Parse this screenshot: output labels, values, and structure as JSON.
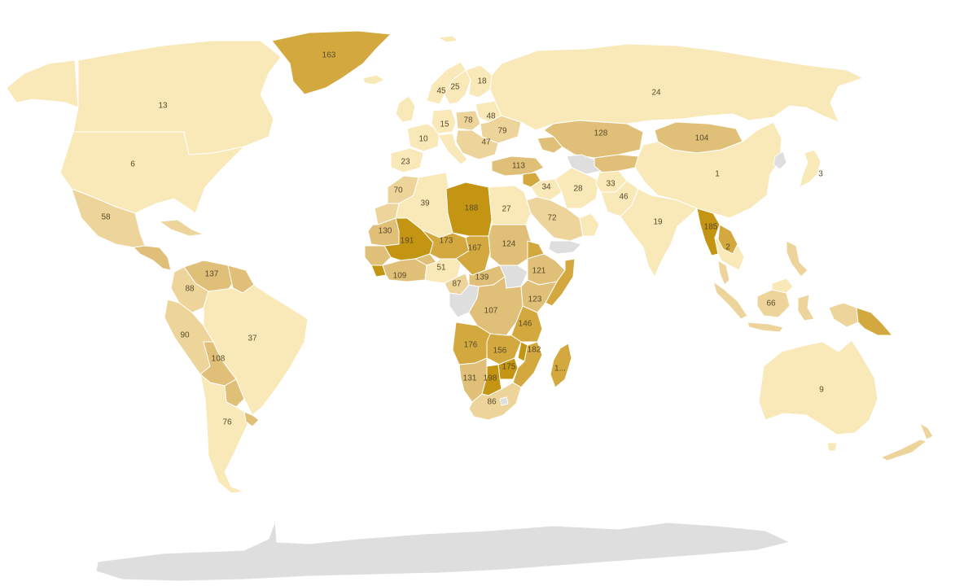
{
  "palette": {
    "tier1": "#f9e8b8",
    "tier2": "#ecd49a",
    "tier3": "#e0c078",
    "tier4": "#d3a93f",
    "tier5": "#c49513",
    "nodata": "#dedede",
    "background": "#ffffff"
  },
  "regions": [
    {
      "id": "greenland",
      "label": "163",
      "tier": "tier4"
    },
    {
      "id": "canada",
      "label": "13",
      "tier": "tier1"
    },
    {
      "id": "usa",
      "label": "6",
      "tier": "tier1"
    },
    {
      "id": "alaska",
      "label": "",
      "tier": "tier1"
    },
    {
      "id": "mexico",
      "label": "58",
      "tier": "tier2"
    },
    {
      "id": "central-america",
      "label": "",
      "tier": "tier3"
    },
    {
      "id": "caribbean",
      "label": "",
      "tier": "tier2"
    },
    {
      "id": "venezuela",
      "label": "137",
      "tier": "tier3"
    },
    {
      "id": "guianas",
      "label": "",
      "tier": "tier3"
    },
    {
      "id": "colombia",
      "label": "88",
      "tier": "tier2"
    },
    {
      "id": "ecuador-peru",
      "label": "90",
      "tier": "tier2"
    },
    {
      "id": "brazil",
      "label": "37",
      "tier": "tier1"
    },
    {
      "id": "bolivia",
      "label": "108",
      "tier": "tier3"
    },
    {
      "id": "paraguay",
      "label": "",
      "tier": "tier3"
    },
    {
      "id": "argentina-chile",
      "label": "76",
      "tier": "tier1"
    },
    {
      "id": "uruguay",
      "label": "",
      "tier": "tier3"
    },
    {
      "id": "iceland",
      "label": "",
      "tier": "tier1"
    },
    {
      "id": "uk-ireland",
      "label": "",
      "tier": "tier1"
    },
    {
      "id": "norway",
      "label": "45",
      "tier": "tier1"
    },
    {
      "id": "sweden",
      "label": "25",
      "tier": "tier1"
    },
    {
      "id": "finland",
      "label": "18",
      "tier": "tier1"
    },
    {
      "id": "svalbard",
      "label": "",
      "tier": "tier1"
    },
    {
      "id": "france",
      "label": "10",
      "tier": "tier1"
    },
    {
      "id": "germany",
      "label": "15",
      "tier": "tier1"
    },
    {
      "id": "poland",
      "label": "78",
      "tier": "tier2"
    },
    {
      "id": "belarus",
      "label": "48",
      "tier": "tier1"
    },
    {
      "id": "ukraine",
      "label": "79",
      "tier": "tier2"
    },
    {
      "id": "balkans",
      "label": "47",
      "tier": "tier2"
    },
    {
      "id": "iberia",
      "label": "23",
      "tier": "tier1"
    },
    {
      "id": "italy",
      "label": "",
      "tier": "tier1"
    },
    {
      "id": "turkey",
      "label": "113",
      "tier": "tier3"
    },
    {
      "id": "syria",
      "label": "",
      "tier": "tier4"
    },
    {
      "id": "russia",
      "label": "24",
      "tier": "tier1"
    },
    {
      "id": "kazakhstan",
      "label": "128",
      "tier": "tier3"
    },
    {
      "id": "central-asia",
      "label": "",
      "tier": "tier3"
    },
    {
      "id": "turkmenistan",
      "label": "",
      "tier": "nodata"
    },
    {
      "id": "caucasus",
      "label": "",
      "tier": "tier3"
    },
    {
      "id": "mongolia",
      "label": "104",
      "tier": "tier3"
    },
    {
      "id": "china",
      "label": "1",
      "tier": "tier1"
    },
    {
      "id": "north-korea",
      "label": "",
      "tier": "nodata"
    },
    {
      "id": "japan",
      "label": "3",
      "tier": "tier1"
    },
    {
      "id": "iran",
      "label": "28",
      "tier": "tier1"
    },
    {
      "id": "iraq",
      "label": "34",
      "tier": "tier1"
    },
    {
      "id": "afghanistan",
      "label": "33",
      "tier": "tier1"
    },
    {
      "id": "pakistan",
      "label": "46",
      "tier": "tier1"
    },
    {
      "id": "saudi-arabia",
      "label": "72",
      "tier": "tier2"
    },
    {
      "id": "gulf-states",
      "label": "",
      "tier": "tier1"
    },
    {
      "id": "yemen",
      "label": "",
      "tier": "nodata"
    },
    {
      "id": "india",
      "label": "19",
      "tier": "tier1"
    },
    {
      "id": "myanmar",
      "label": "185",
      "tier": "tier5"
    },
    {
      "id": "laos-cambodia",
      "label": "",
      "tier": "tier4"
    },
    {
      "id": "thailand-vietnam",
      "label": "2",
      "tier": "tier1"
    },
    {
      "id": "malay-peninsula",
      "label": "",
      "tier": "tier2"
    },
    {
      "id": "sumatra",
      "label": "",
      "tier": "tier2"
    },
    {
      "id": "borneo",
      "label": "66",
      "tier": "tier2"
    },
    {
      "id": "borneo-north",
      "label": "",
      "tier": "tier1"
    },
    {
      "id": "java",
      "label": "",
      "tier": "tier2"
    },
    {
      "id": "sulawesi",
      "label": "",
      "tier": "tier2"
    },
    {
      "id": "philippines",
      "label": "",
      "tier": "tier2"
    },
    {
      "id": "new-guinea-west",
      "label": "",
      "tier": "tier2"
    },
    {
      "id": "papua-new-guinea",
      "label": "",
      "tier": "tier4"
    },
    {
      "id": "australia",
      "label": "9",
      "tier": "tier1"
    },
    {
      "id": "tasmania",
      "label": "",
      "tier": "tier1"
    },
    {
      "id": "new-zealand-north",
      "label": "",
      "tier": "tier2"
    },
    {
      "id": "new-zealand-south",
      "label": "",
      "tier": "tier2"
    },
    {
      "id": "morocco",
      "label": "70",
      "tier": "tier2"
    },
    {
      "id": "western-sahara",
      "label": "",
      "tier": "tier2"
    },
    {
      "id": "algeria",
      "label": "39",
      "tier": "tier1"
    },
    {
      "id": "libya",
      "label": "188",
      "tier": "tier5"
    },
    {
      "id": "egypt",
      "label": "27",
      "tier": "tier1"
    },
    {
      "id": "mauritania",
      "label": "130",
      "tier": "tier3"
    },
    {
      "id": "mali",
      "label": "191",
      "tier": "tier5"
    },
    {
      "id": "niger",
      "label": "173",
      "tier": "tier4"
    },
    {
      "id": "chad",
      "label": "167",
      "tier": "tier4"
    },
    {
      "id": "sudan",
      "label": "124",
      "tier": "tier3"
    },
    {
      "id": "senegal-guinea",
      "label": "",
      "tier": "tier3"
    },
    {
      "id": "sierra-leone",
      "label": "",
      "tier": "tier5"
    },
    {
      "id": "west-coast",
      "label": "109",
      "tier": "tier3"
    },
    {
      "id": "burkina",
      "label": "",
      "tier": "tier3"
    },
    {
      "id": "nigeria",
      "label": "51",
      "tier": "tier1"
    },
    {
      "id": "cameroon",
      "label": "87",
      "tier": "tier2"
    },
    {
      "id": "car",
      "label": "139",
      "tier": "tier3"
    },
    {
      "id": "south-sudan",
      "label": "",
      "tier": "nodata"
    },
    {
      "id": "ethiopia",
      "label": "121",
      "tier": "tier3"
    },
    {
      "id": "eritrea",
      "label": "",
      "tier": "tier4"
    },
    {
      "id": "somalia",
      "label": "",
      "tier": "tier4"
    },
    {
      "id": "kenya",
      "label": "123",
      "tier": "tier3"
    },
    {
      "id": "gabon-congo",
      "label": "",
      "tier": "nodata"
    },
    {
      "id": "drc",
      "label": "107",
      "tier": "tier3"
    },
    {
      "id": "tanzania",
      "label": "146",
      "tier": "tier4"
    },
    {
      "id": "angola",
      "label": "176",
      "tier": "tier4"
    },
    {
      "id": "zambia",
      "label": "156",
      "tier": "tier4"
    },
    {
      "id": "malawi",
      "label": "",
      "tier": "tier5"
    },
    {
      "id": "mozambique",
      "label": "182",
      "tier": "tier4"
    },
    {
      "id": "zimbabwe",
      "label": "175",
      "tier": "tier5"
    },
    {
      "id": "namibia",
      "label": "131",
      "tier": "tier3"
    },
    {
      "id": "botswana",
      "label": "198",
      "tier": "tier5"
    },
    {
      "id": "south-africa",
      "label": "86",
      "tier": "tier2"
    },
    {
      "id": "lesotho",
      "label": "",
      "tier": "nodata"
    },
    {
      "id": "madagascar",
      "label": "1...",
      "tier": "tier4"
    },
    {
      "id": "antarctica",
      "label": "",
      "tier": "nodata"
    }
  ]
}
